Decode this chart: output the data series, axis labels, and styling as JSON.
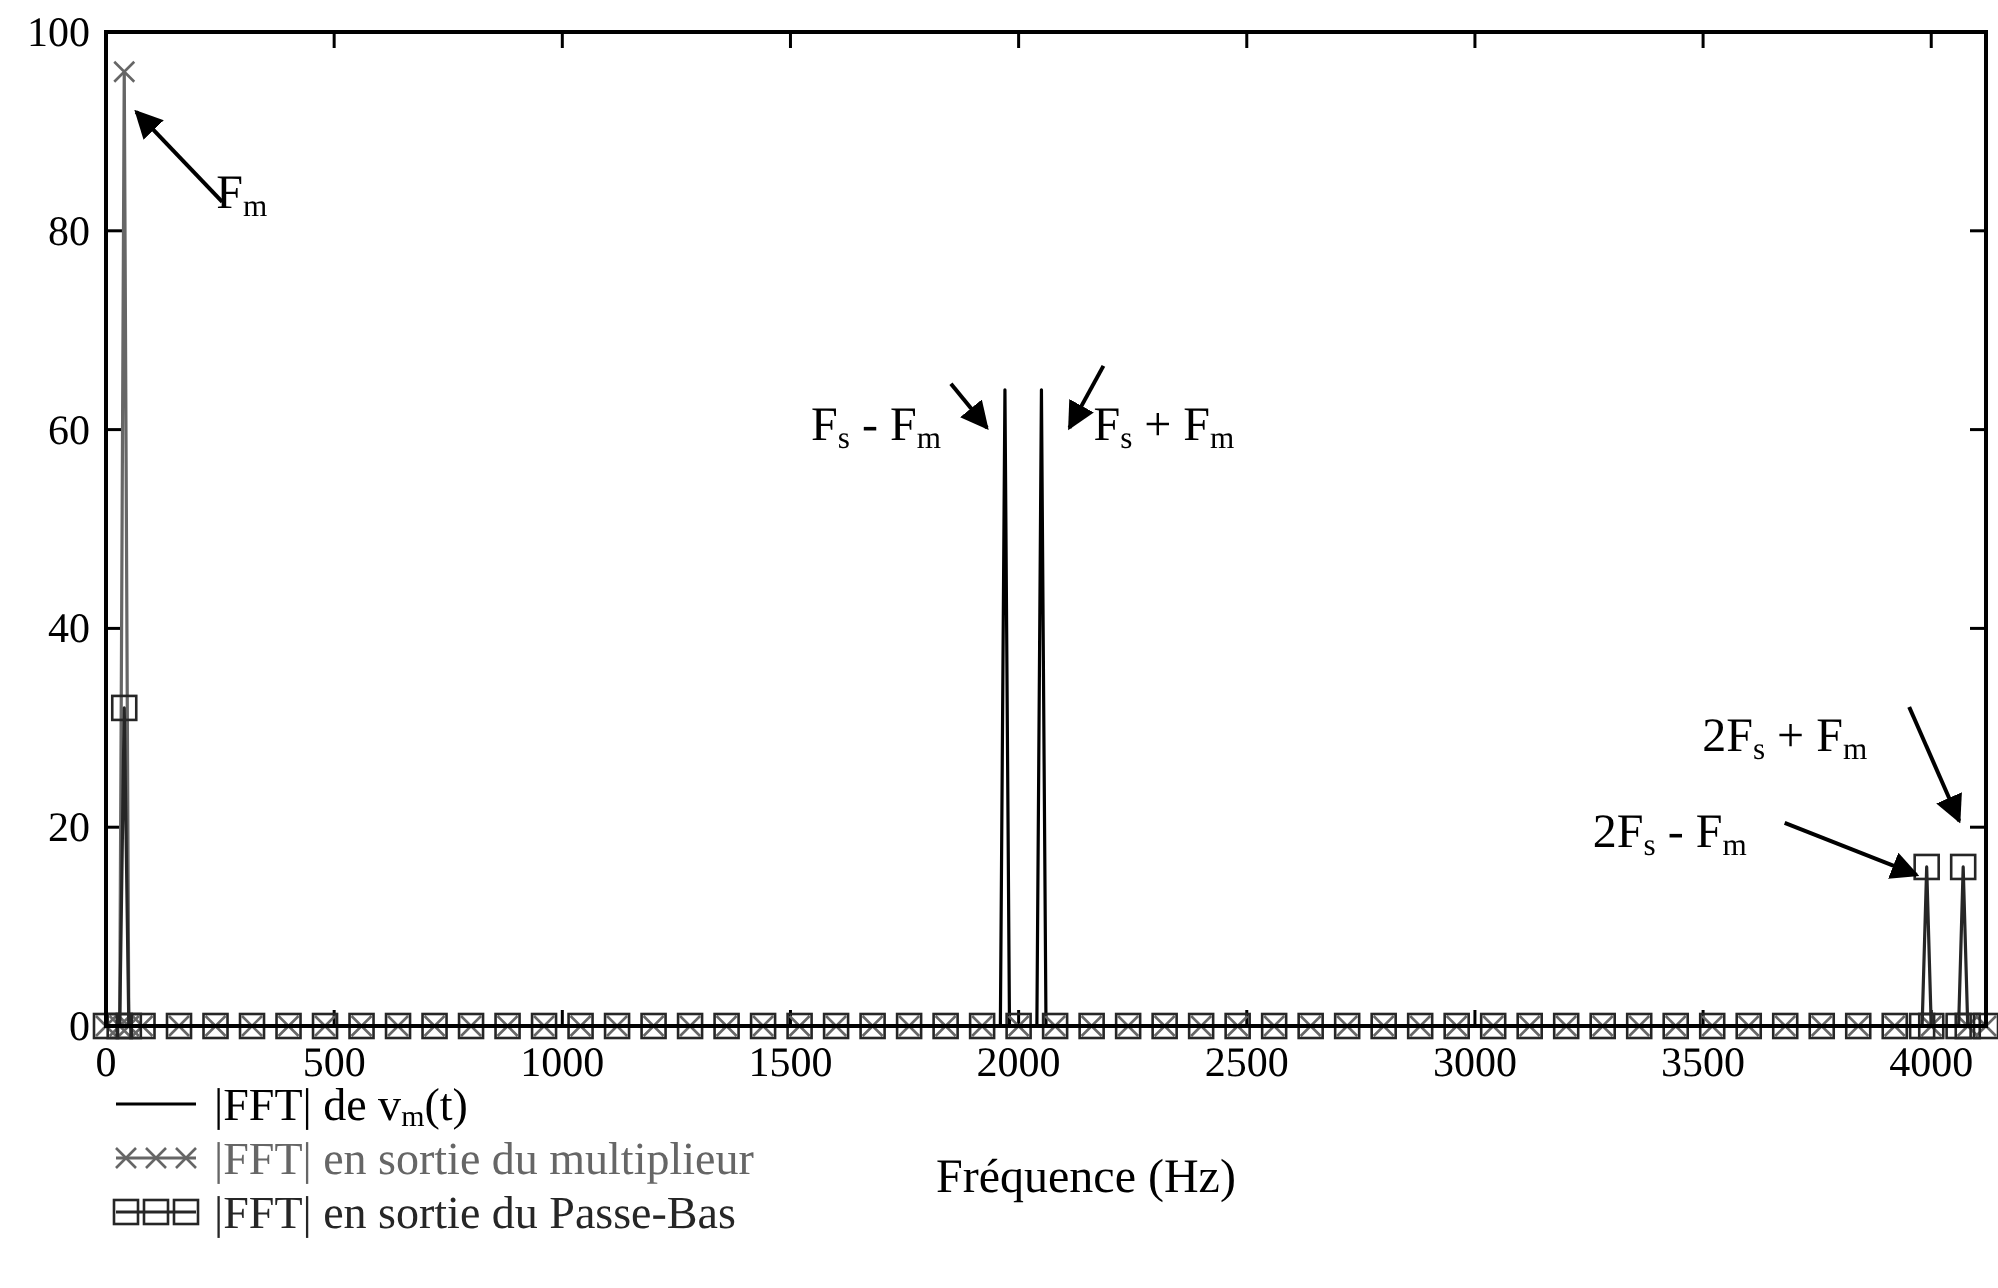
{
  "chart_data": {
    "type": "line",
    "xlabel": "Fréquence (Hz)",
    "xlim": [
      0,
      4120
    ],
    "ylim": [
      0,
      100
    ],
    "xticks": [
      0,
      500,
      1000,
      1500,
      2000,
      2500,
      3000,
      3500,
      4000
    ],
    "yticks": [
      0,
      20,
      40,
      60,
      80,
      100
    ],
    "grid": false,
    "legend": "bottom left",
    "series": [
      {
        "name": "|FFT| de v$_{m}$(t)",
        "color": "#000000",
        "marker": "none",
        "x": [
          0,
          80,
          160,
          240,
          320,
          400,
          480,
          560,
          640,
          720,
          800,
          880,
          960,
          1040,
          1120,
          1200,
          1280,
          1360,
          1440,
          1520,
          1600,
          1680,
          1760,
          1840,
          1920,
          1960,
          1970,
          1980,
          2000,
          2040,
          2050,
          2060,
          2080,
          2160,
          2240,
          2320,
          2400,
          2480,
          2560,
          2640,
          2720,
          2800,
          2880,
          2960,
          3040,
          3120,
          3200,
          3280,
          3360,
          3440,
          3520,
          3600,
          3680,
          3760,
          3840,
          3920,
          4000,
          4080,
          4120
        ],
        "values": [
          0,
          0,
          0,
          0,
          0,
          0,
          0,
          0,
          0,
          0,
          0,
          0,
          0,
          0,
          0,
          0,
          0,
          0,
          0,
          0,
          0,
          0,
          0,
          0,
          0,
          0,
          64,
          0,
          0,
          0,
          64,
          0,
          0,
          0,
          0,
          0,
          0,
          0,
          0,
          0,
          0,
          0,
          0,
          0,
          0,
          0,
          0,
          0,
          0,
          0,
          0,
          0,
          0,
          0,
          0,
          0,
          0,
          0,
          0
        ]
      },
      {
        "name": "|FFT| en sortie du multiplieur",
        "color": "#666666",
        "marker": "cross",
        "x": [
          0,
          30,
          40,
          50,
          80,
          160,
          240,
          320,
          400,
          480,
          560,
          640,
          720,
          800,
          880,
          960,
          1040,
          1120,
          1200,
          1280,
          1360,
          1440,
          1520,
          1600,
          1680,
          1760,
          1840,
          1920,
          2000,
          2080,
          2160,
          2240,
          2320,
          2400,
          2480,
          2560,
          2640,
          2720,
          2800,
          2880,
          2960,
          3040,
          3120,
          3200,
          3280,
          3360,
          3440,
          3520,
          3600,
          3680,
          3760,
          3840,
          3920,
          4000,
          4080,
          4120
        ],
        "values": [
          0,
          0,
          96,
          0,
          0,
          0,
          0,
          0,
          0,
          0,
          0,
          0,
          0,
          0,
          0,
          0,
          0,
          0,
          0,
          0,
          0,
          0,
          0,
          0,
          0,
          0,
          0,
          0,
          0,
          0,
          0,
          0,
          0,
          0,
          0,
          0,
          0,
          0,
          0,
          0,
          0,
          0,
          0,
          0,
          0,
          0,
          0,
          0,
          0,
          0,
          0,
          0,
          0,
          0,
          0,
          0
        ]
      },
      {
        "name": "|FFT| en sortie du Passe-Bas",
        "color": "#262626",
        "marker": "square",
        "x": [
          0,
          30,
          40,
          50,
          80,
          160,
          240,
          320,
          400,
          480,
          560,
          640,
          720,
          800,
          880,
          960,
          1040,
          1120,
          1200,
          1280,
          1360,
          1440,
          1520,
          1600,
          1680,
          1760,
          1840,
          1920,
          2000,
          2080,
          2160,
          2240,
          2320,
          2400,
          2480,
          2560,
          2640,
          2720,
          2800,
          2880,
          2960,
          3040,
          3120,
          3200,
          3280,
          3360,
          3440,
          3520,
          3600,
          3680,
          3760,
          3840,
          3920,
          3980,
          3990,
          4000,
          4060,
          4070,
          4080,
          4120
        ],
        "values": [
          0,
          0,
          32,
          0,
          0,
          0,
          0,
          0,
          0,
          0,
          0,
          0,
          0,
          0,
          0,
          0,
          0,
          0,
          0,
          0,
          0,
          0,
          0,
          0,
          0,
          0,
          0,
          0,
          0,
          0,
          0,
          0,
          0,
          0,
          0,
          0,
          0,
          0,
          0,
          0,
          0,
          0,
          0,
          0,
          0,
          0,
          0,
          0,
          0,
          0,
          0,
          0,
          0,
          0,
          16,
          0,
          0,
          16,
          0,
          0
        ]
      }
    ],
    "annotations": [
      {
        "text": "F$_{m}$",
        "x": 40,
        "y": 96
      },
      {
        "text": "F$_{s}$ - F$_{m}$",
        "x": 1970,
        "y": 64
      },
      {
        "text": "F$_{s}$ + F$_{m}$",
        "x": 2050,
        "y": 64
      },
      {
        "text": "2F$_{s}$ - F$_{m}$",
        "x": 3990,
        "y": 16
      },
      {
        "text": "2F$_{s}$ + F$_{m}$",
        "x": 4070,
        "y": 16
      }
    ]
  }
}
